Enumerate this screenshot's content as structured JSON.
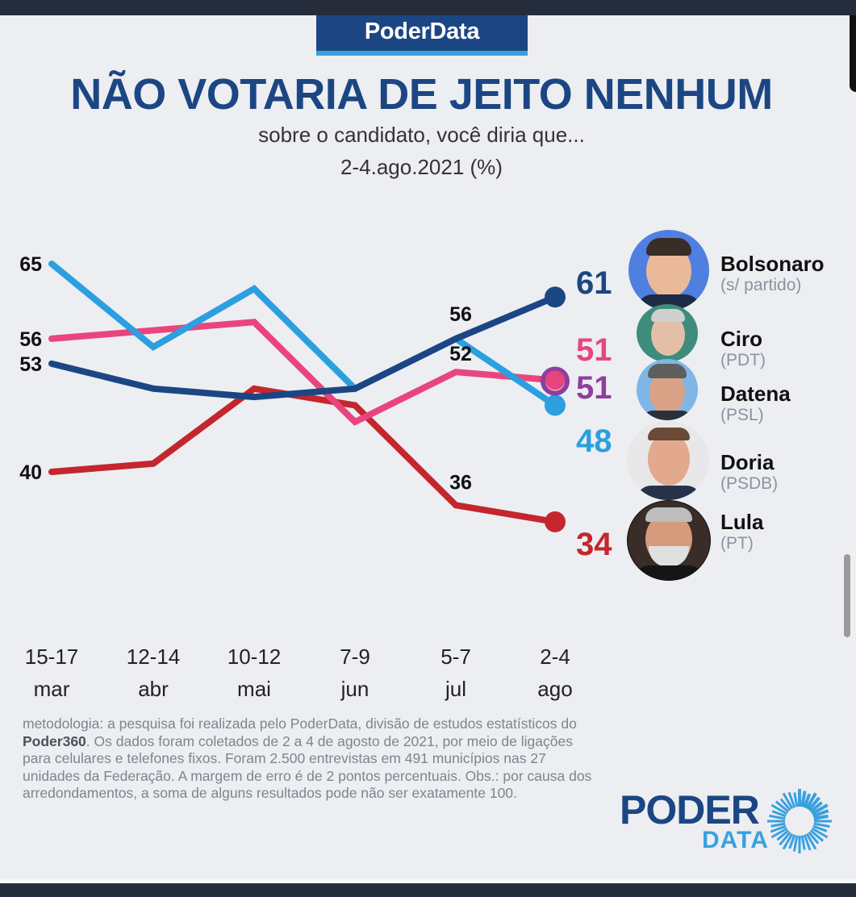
{
  "header": {
    "brand_tab": "PoderData",
    "title": "NÃO VOTARIA DE JEITO NENHUM",
    "subtitle": "sobre o candidato, você diria que...",
    "date": "2-4.ago.2021 (%)"
  },
  "colors": {
    "brand_navy": "#1c4683",
    "brand_light_blue": "#3aa0de",
    "bolsonaro": "#1c4683",
    "ciro": "#e8457e",
    "datena": "#8e3f9e",
    "doria": "#2b9fe0",
    "lula": "#c4262e"
  },
  "candidates": [
    {
      "name": "Bolsonaro",
      "party": "(s/ partido)",
      "end_label": "61"
    },
    {
      "name": "Ciro",
      "party": "(PDT)",
      "end_label": "51"
    },
    {
      "name": "Datena",
      "party": "(PSL)",
      "end_label": "51"
    },
    {
      "name": "Doria",
      "party": "(PSDB)",
      "end_label": "48"
    },
    {
      "name": "Lula",
      "party": "(PT)",
      "end_label": "34"
    }
  ],
  "chart_data": {
    "type": "line",
    "title": "NÃO VOTARIA DE JEITO NENHUM",
    "subtitle": "sobre o candidato, você diria que... 2-4.ago.2021 (%)",
    "xlabel": "",
    "ylabel": "%",
    "categories": [
      {
        "line1": "15-17",
        "line2": "mar"
      },
      {
        "line1": "12-14",
        "line2": "abr"
      },
      {
        "line1": "10-12",
        "line2": "mai"
      },
      {
        "line1": "7-9",
        "line2": "jun"
      },
      {
        "line1": "5-7",
        "line2": "jul"
      },
      {
        "line1": "2-4",
        "line2": "ago"
      }
    ],
    "ylim": [
      30,
      70
    ],
    "grid": false,
    "legend": "right",
    "series": [
      {
        "name": "Doria",
        "key": "doria",
        "values": [
          65,
          55,
          62,
          50,
          56,
          48
        ]
      },
      {
        "name": "Ciro",
        "key": "ciro",
        "values": [
          56,
          57,
          58,
          46,
          52,
          51
        ]
      },
      {
        "name": "Bolsonaro",
        "key": "bolsonaro",
        "values": [
          53,
          50,
          49,
          50,
          56,
          61
        ]
      },
      {
        "name": "Lula",
        "key": "lula",
        "values": [
          40,
          41,
          50,
          48,
          36,
          34
        ]
      },
      {
        "name": "Datena",
        "key": "datena",
        "values": [
          null,
          null,
          null,
          null,
          null,
          51
        ]
      }
    ],
    "start_labels": [
      {
        "series": "doria",
        "text": "65"
      },
      {
        "series": "ciro",
        "text": "56"
      },
      {
        "series": "bolsonaro",
        "text": "53"
      },
      {
        "series": "lula",
        "text": "40"
      }
    ],
    "annotations": [
      {
        "series": "bolsonaro",
        "index": 4,
        "text": "56"
      },
      {
        "series": "ciro",
        "index": 4,
        "text": "52"
      },
      {
        "series": "lula",
        "index": 4,
        "text": "36"
      }
    ],
    "end_labels": [
      {
        "series": "bolsonaro",
        "text": "61"
      },
      {
        "series": "ciro",
        "text": "51"
      },
      {
        "series": "datena",
        "text": "51"
      },
      {
        "series": "doria",
        "text": "48"
      },
      {
        "series": "lula",
        "text": "34"
      }
    ]
  },
  "methodology": {
    "part1": "metodologia: a pesquisa foi realizada pelo PoderData, divisão de estudos estatísticos do ",
    "bold": "Poder360",
    "part2": ". Os dados foram coletados de 2 a 4 de agosto de 2021, por meio de ligações para celulares e telefones fixos. Foram 2.500 entrevistas em 491 municípios nas 27 unidades da Federação. A margem de erro é de 2 pontos percentuais. Obs.: por causa dos arredondamentos, a soma de alguns resultados pode não ser exatamente 100."
  },
  "logo": {
    "word1": "PODER",
    "word2": "DATA"
  }
}
